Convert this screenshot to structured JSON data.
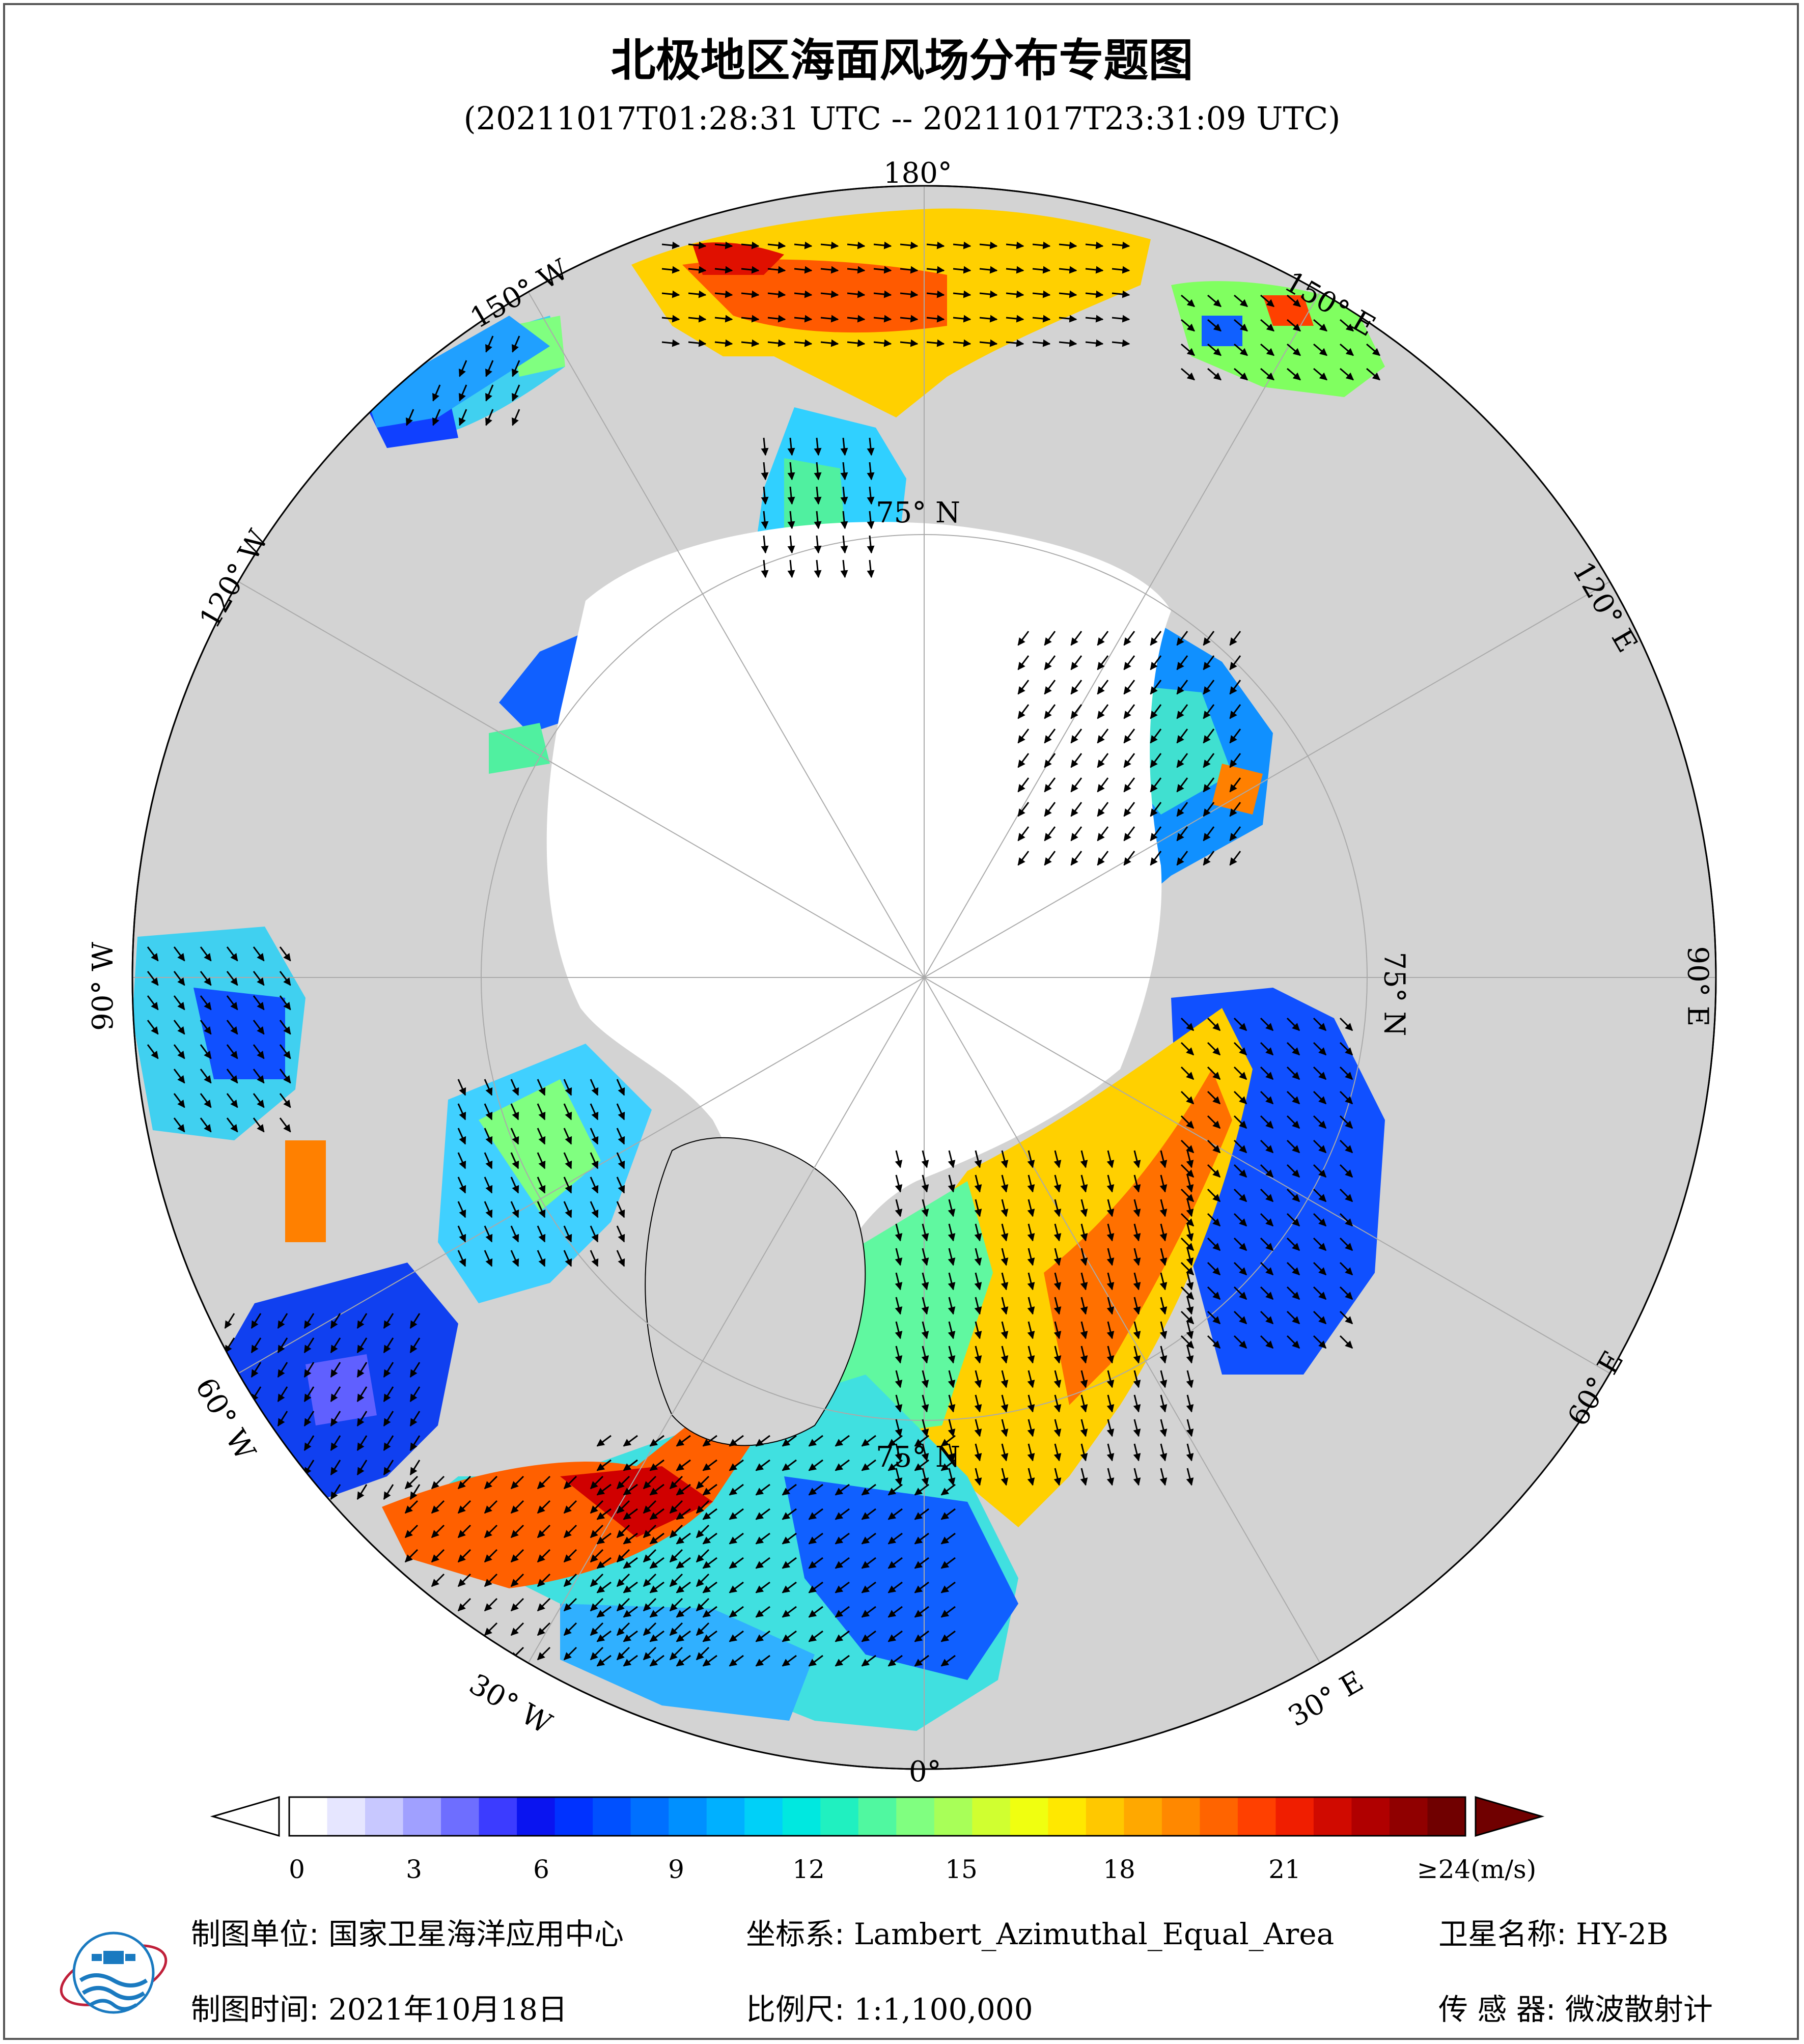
{
  "title": "北极地区海面风场分布专题图",
  "subtitle": "(20211017T01:28:31 UTC -- 20211017T23:31:09 UTC)",
  "graticule_labels": {
    "lon_180": "180°",
    "lon_150w": "150° W",
    "lon_120w": "120° W",
    "lon_90w": "90° W",
    "lon_60w": "60° W",
    "lon_30w": "30° W",
    "lon_0": "0°",
    "lon_30e": "30° E",
    "lon_60e": "60° E",
    "lon_90e": "90° E",
    "lon_120e": "120° E",
    "lon_150e": "150° E",
    "lat_75n_right": "75° N",
    "lat_75n_bottom": "75° N",
    "lat_75n_top": "75° N"
  },
  "colorbar": {
    "ticks": [
      "0",
      "3",
      "6",
      "9",
      "12",
      "15",
      "18",
      "21"
    ],
    "last_label": "≥24(m/s)",
    "colors": [
      "#ffffff",
      "#e6e6ff",
      "#c8c8ff",
      "#a0a0ff",
      "#6e6eff",
      "#3c3cff",
      "#0a14f0",
      "#0032ff",
      "#0050ff",
      "#0070ff",
      "#0090ff",
      "#00b0ff",
      "#00d0f8",
      "#00e8e0",
      "#20f0c0",
      "#50f8a0",
      "#80ff80",
      "#a8ff58",
      "#d0ff30",
      "#f0ff10",
      "#ffe800",
      "#ffc800",
      "#ffa800",
      "#ff8800",
      "#ff6400",
      "#ff4000",
      "#f01e00",
      "#d00a00",
      "#b00000",
      "#900000",
      "#700000"
    ],
    "under_color": "#ffffff",
    "over_color": "#700000"
  },
  "info": {
    "unit_label": "制图单位:",
    "unit_value": "国家卫星海洋应用中心",
    "date_label": "制图时间:",
    "date_value": "2021年10月18日",
    "crs_label": "坐标系:",
    "crs_value": "Lambert_Azimuthal_Equal_Area",
    "scale_label": "比例尺:",
    "scale_value": "1:1,100,000",
    "sat_label": "卫星名称:",
    "sat_value": "HY-2B",
    "sensor_label": "传 感 器:",
    "sensor_value": "微波散射计"
  },
  "colors": {
    "land": "#d3d3d3",
    "ice_no_data": "#ffffff",
    "coast": "#000000"
  }
}
